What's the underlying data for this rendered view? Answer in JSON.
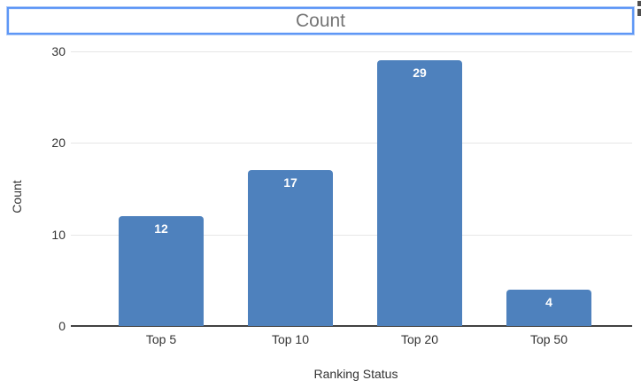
{
  "title_box": {
    "text": "Count",
    "border_color": "#5e97f6",
    "text_color": "#757575"
  },
  "chart_data": {
    "type": "bar",
    "title": "Count",
    "categories": [
      "Top 5",
      "Top 10",
      "Top 20",
      "Top 50"
    ],
    "values": [
      12,
      17,
      29,
      4
    ],
    "bar_labels": [
      "12",
      "17",
      "29",
      "4"
    ],
    "xlabel": "Ranking Status",
    "ylabel": "Count",
    "ylim": [
      0,
      30
    ],
    "yticks": [
      0,
      10,
      20,
      30
    ],
    "grid": true,
    "legend_position": "none",
    "bar_color": "#4e81bd",
    "bar_label_color": "#ffffff",
    "gridline_color": "#e6e6e6",
    "baseline_color": "#424242",
    "axis_text_color": "#333333"
  }
}
